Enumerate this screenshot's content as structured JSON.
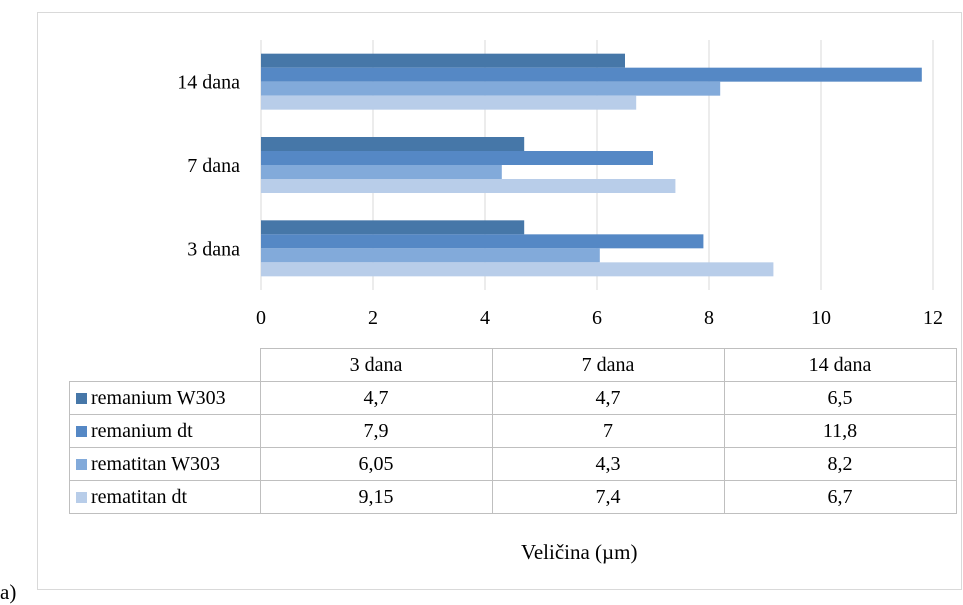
{
  "chart_data": {
    "type": "bar",
    "orientation": "horizontal",
    "categories": [
      "3 dana",
      "7 dana",
      "14 dana"
    ],
    "series": [
      {
        "name": "remanium W303",
        "values": [
          4.7,
          4.7,
          6.5
        ],
        "display": [
          "4,7",
          "4,7",
          "6,5"
        ],
        "color": "#4677a8"
      },
      {
        "name": "remanium dt",
        "values": [
          7.9,
          7,
          11.8
        ],
        "display": [
          "7,9",
          "7",
          "11,8"
        ],
        "color": "#5588c5"
      },
      {
        "name": "rematitan W303",
        "values": [
          6.05,
          4.3,
          8.2
        ],
        "display": [
          "6,05",
          "4,3",
          "8,2"
        ],
        "color": "#82aada"
      },
      {
        "name": "rematitan dt",
        "values": [
          9.15,
          7.4,
          6.7
        ],
        "display": [
          "9,15",
          "7,4",
          "6,7"
        ],
        "color": "#b8cde9"
      }
    ],
    "xlim": [
      0,
      12
    ],
    "xticks": [
      "0",
      "2",
      "4",
      "6",
      "8",
      "10",
      "12"
    ],
    "xlabel": "Veličina (µm)",
    "grid": true,
    "legend": "data table"
  },
  "panel_letter": "a)"
}
